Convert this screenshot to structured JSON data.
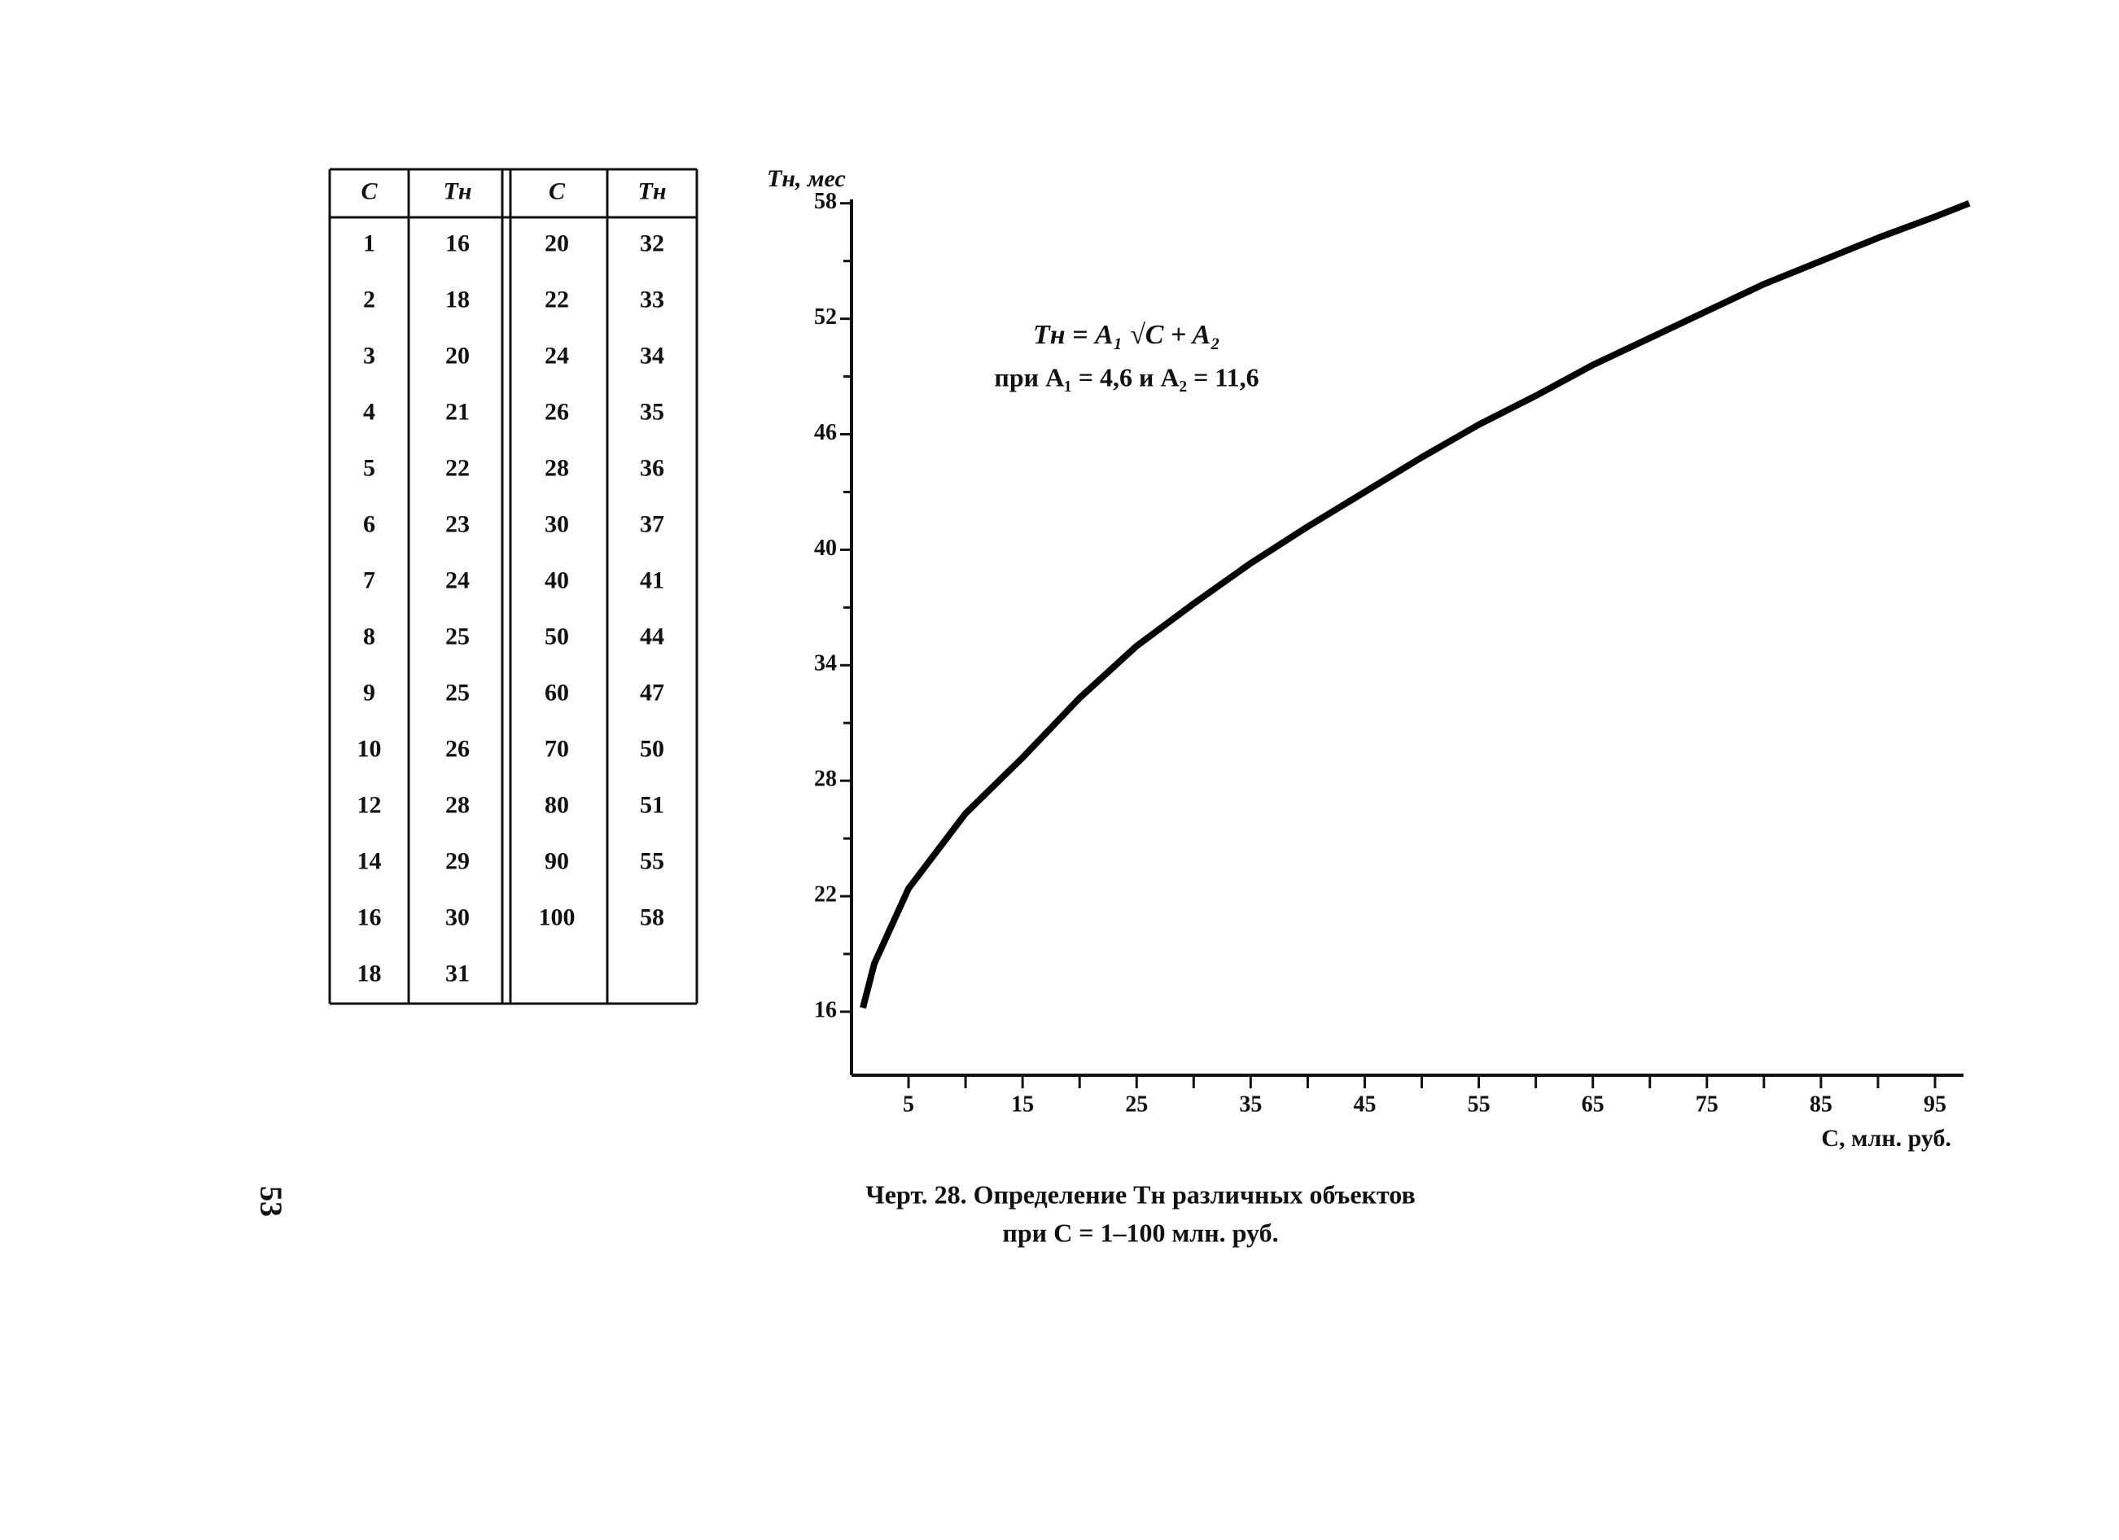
{
  "page_number": "53",
  "table": {
    "header": [
      "C",
      "Tн",
      "C",
      "Tн"
    ],
    "rows": [
      [
        "1",
        "16",
        "20",
        "32"
      ],
      [
        "2",
        "18",
        "22",
        "33"
      ],
      [
        "3",
        "20",
        "24",
        "34"
      ],
      [
        "4",
        "21",
        "26",
        "35"
      ],
      [
        "5",
        "22",
        "28",
        "36"
      ],
      [
        "6",
        "23",
        "30",
        "37"
      ],
      [
        "7",
        "24",
        "40",
        "41"
      ],
      [
        "8",
        "25",
        "50",
        "44"
      ],
      [
        "9",
        "25",
        "60",
        "47"
      ],
      [
        "10",
        "26",
        "70",
        "50"
      ],
      [
        "12",
        "28",
        "80",
        "51"
      ],
      [
        "14",
        "29",
        "90",
        "55"
      ],
      [
        "16",
        "30",
        "100",
        "58"
      ],
      [
        "18",
        "31"
      ]
    ]
  },
  "chart_data": {
    "type": "line",
    "y_label": "Tн, мес",
    "x_label": "C, млн. руб.",
    "annotations": [
      "Tн = A₁ √C + A₂",
      "при A₁ = 4,6 и A₂ = 11,6"
    ],
    "caption": [
      "Черт. 28. Определение Tн различных объектов",
      "при C = 1–100 млн. руб."
    ],
    "x": [
      1,
      2,
      5,
      10,
      15,
      20,
      25,
      30,
      35,
      40,
      45,
      50,
      55,
      60,
      65,
      70,
      75,
      80,
      85,
      90,
      95,
      98
    ],
    "series": [
      {
        "name": "Tн",
        "color": "#000000",
        "values": [
          16.2,
          18.5,
          22.4,
          26.3,
          29.2,
          32.3,
          35.0,
          37.2,
          39.3,
          41.2,
          43.0,
          44.8,
          46.5,
          48.0,
          49.6,
          51.0,
          52.4,
          53.8,
          55.0,
          56.2,
          57.3,
          58.0
        ]
      }
    ],
    "xlim": [
      0,
      97.5
    ],
    "ylim": [
      12.7,
      58.2
    ],
    "xticks": [
      5,
      15,
      25,
      35,
      45,
      55,
      65,
      75,
      85,
      95
    ],
    "x_minor_ticks": [
      10,
      20,
      30,
      40,
      50,
      60,
      70,
      80,
      90
    ],
    "yticks": [
      16,
      22,
      28,
      34,
      40,
      46,
      52,
      58
    ],
    "y_minor_ticks": [
      19,
      25,
      31,
      37,
      43,
      49,
      55
    ]
  }
}
